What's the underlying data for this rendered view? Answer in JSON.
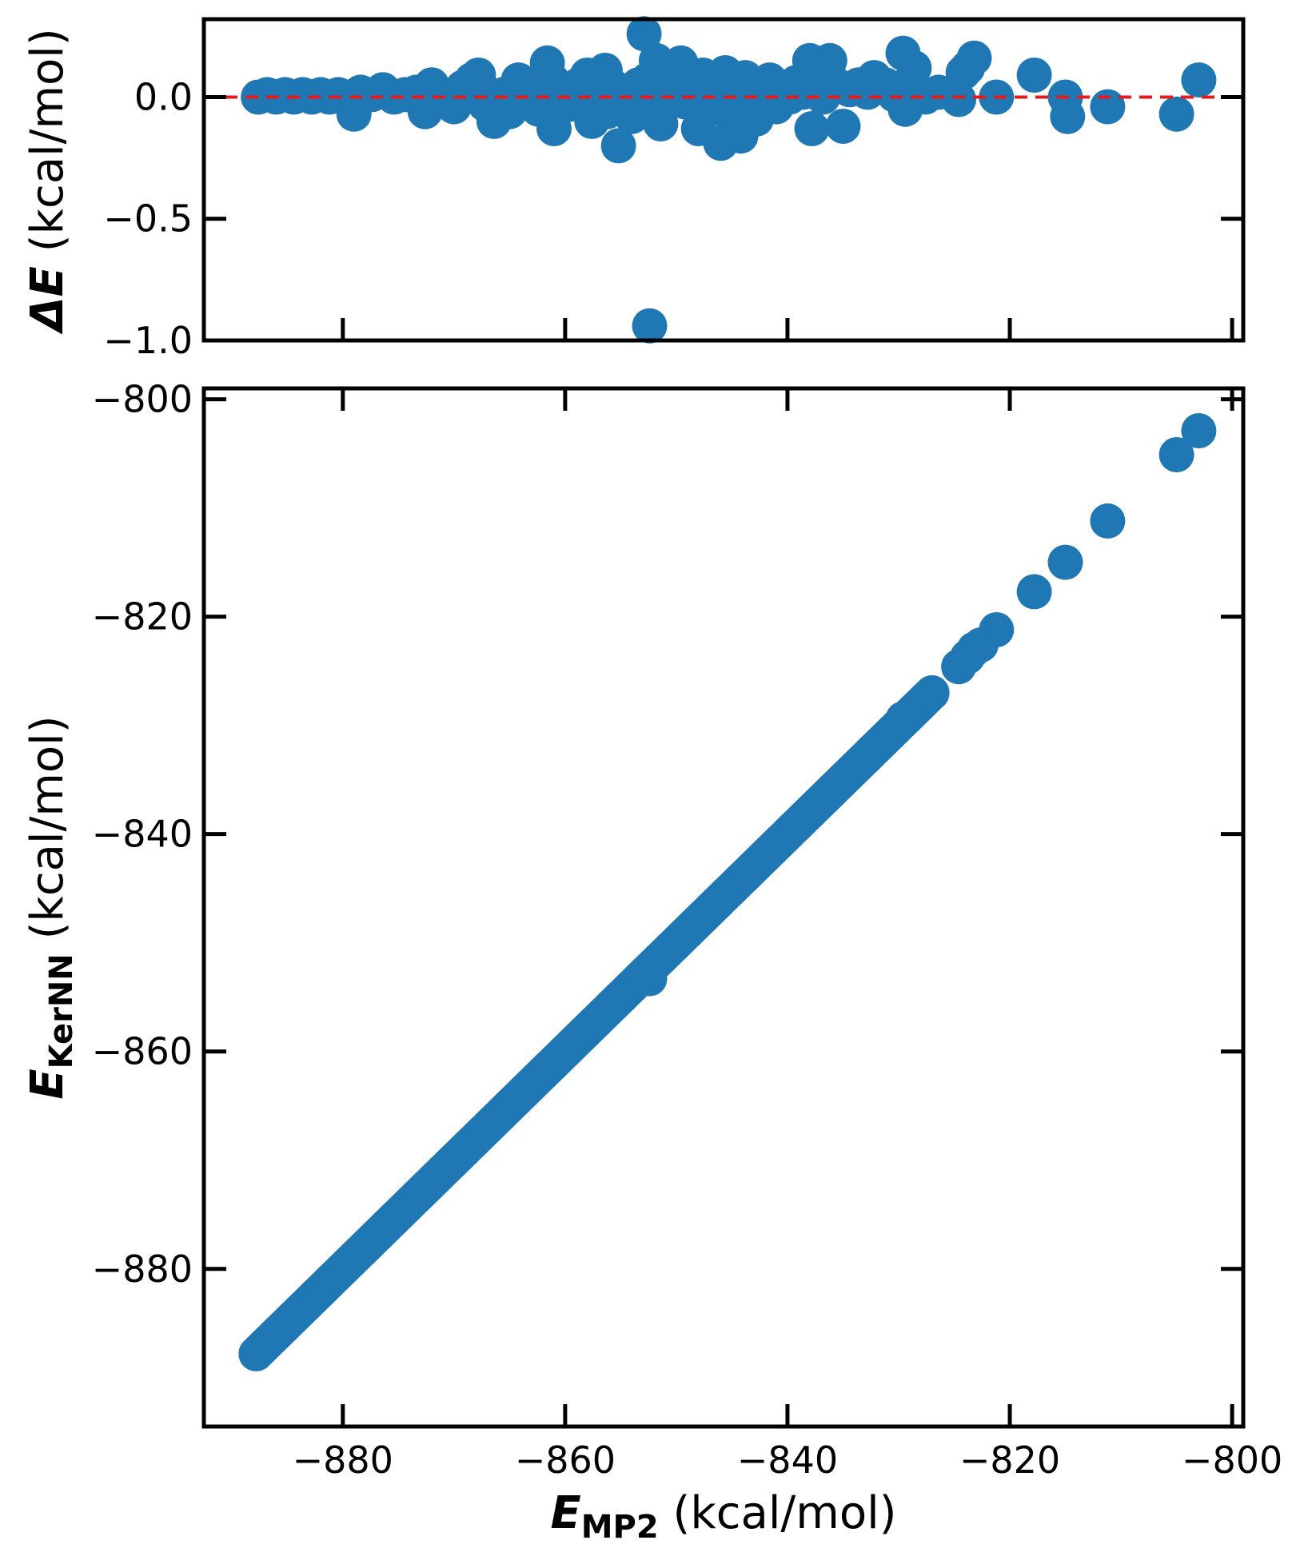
{
  "chart_data": [
    {
      "id": "residual-panel",
      "type": "scatter",
      "xlim": [
        -892.5,
        -799
      ],
      "ylim": [
        -1.0,
        0.32
      ],
      "xticks": [
        -880,
        -860,
        -840,
        -820,
        -800
      ],
      "yticks": [
        0.0,
        -0.5,
        -1.0
      ],
      "ytick_labels": [
        "0.0",
        "−0.5",
        "−1.0"
      ],
      "ylabel_main": "ΔE",
      "ylabel_units": " (kcal/mol)",
      "reference_line": {
        "y": 0.0,
        "color": "#e41a1c",
        "style": "dashed"
      },
      "marker_color": "#1f77b4",
      "points": [
        [
          -887.6,
          0.0
        ],
        [
          -886.8,
          0.01
        ],
        [
          -886.0,
          0.0
        ],
        [
          -885.2,
          0.01
        ],
        [
          -884.4,
          0.0
        ],
        [
          -883.6,
          0.01
        ],
        [
          -882.8,
          0.0
        ],
        [
          -882.0,
          0.01
        ],
        [
          -881.2,
          0.0
        ],
        [
          -880.4,
          0.01
        ],
        [
          -879.6,
          0.0
        ],
        [
          -879.0,
          -0.07
        ],
        [
          -878.4,
          0.02
        ],
        [
          -877.4,
          0.01
        ],
        [
          -876.4,
          0.03
        ],
        [
          -875.4,
          0.0
        ],
        [
          -874.4,
          0.01
        ],
        [
          -873.4,
          0.02
        ],
        [
          -872.6,
          -0.06
        ],
        [
          -872.0,
          0.05
        ],
        [
          -871.0,
          0.01
        ],
        [
          -870.0,
          -0.04
        ],
        [
          -869.2,
          0.04
        ],
        [
          -868.4,
          0.07
        ],
        [
          -867.8,
          0.09
        ],
        [
          -867.2,
          -0.03
        ],
        [
          -866.4,
          -0.1
        ],
        [
          -865.6,
          0.01
        ],
        [
          -865.0,
          -0.06
        ],
        [
          -864.2,
          0.07
        ],
        [
          -863.4,
          0.0
        ],
        [
          -862.4,
          -0.05
        ],
        [
          -861.6,
          0.14
        ],
        [
          -861.2,
          0.07
        ],
        [
          -861.0,
          -0.13
        ],
        [
          -860.2,
          0.02
        ],
        [
          -859.6,
          -0.03
        ],
        [
          -858.8,
          0.05
        ],
        [
          -858.0,
          0.09
        ],
        [
          -857.6,
          -0.1
        ],
        [
          -857.0,
          0.02
        ],
        [
          -856.4,
          0.11
        ],
        [
          -856.2,
          -0.06
        ],
        [
          -855.6,
          0.04
        ],
        [
          -855.2,
          -0.2
        ],
        [
          -854.6,
          0.02
        ],
        [
          -854.0,
          -0.08
        ],
        [
          -853.4,
          0.05
        ],
        [
          -852.9,
          0.26
        ],
        [
          -852.6,
          0.07
        ],
        [
          -852.4,
          -0.94
        ],
        [
          -852.2,
          -0.05
        ],
        [
          -851.8,
          0.15
        ],
        [
          -851.4,
          -0.11
        ],
        [
          -851.0,
          0.02
        ],
        [
          -850.4,
          0.08
        ],
        [
          -849.6,
          0.14
        ],
        [
          -849.2,
          -0.02
        ],
        [
          -848.6,
          0.04
        ],
        [
          -848.0,
          -0.13
        ],
        [
          -847.6,
          0.09
        ],
        [
          -847.0,
          -0.05
        ],
        [
          -846.4,
          0.02
        ],
        [
          -846.0,
          -0.19
        ],
        [
          -845.6,
          0.1
        ],
        [
          -845.2,
          -0.07
        ],
        [
          -844.6,
          0.06
        ],
        [
          -844.2,
          -0.16
        ],
        [
          -843.8,
          0.08
        ],
        [
          -843.4,
          0.01
        ],
        [
          -842.8,
          -0.09
        ],
        [
          -842.2,
          0.03
        ],
        [
          -841.6,
          0.07
        ],
        [
          -841.0,
          -0.04
        ],
        [
          -840.4,
          0.03
        ],
        [
          -839.8,
          0.0
        ],
        [
          -839.2,
          0.06
        ],
        [
          -838.6,
          0.02
        ],
        [
          -838.0,
          0.15
        ],
        [
          -837.8,
          -0.13
        ],
        [
          -837.4,
          0.04
        ],
        [
          -836.8,
          0.0
        ],
        [
          -836.2,
          0.15
        ],
        [
          -835.6,
          0.05
        ],
        [
          -835.0,
          -0.12
        ],
        [
          -834.4,
          0.03
        ],
        [
          -833.6,
          0.05
        ],
        [
          -832.8,
          0.02
        ],
        [
          -832.2,
          0.08
        ],
        [
          -831.2,
          0.05
        ],
        [
          -830.4,
          0.01
        ],
        [
          -829.6,
          0.18
        ],
        [
          -829.4,
          -0.05
        ],
        [
          -829.0,
          0.06
        ],
        [
          -828.6,
          0.12
        ],
        [
          -827.6,
          0.0
        ],
        [
          -826.4,
          0.02
        ],
        [
          -824.6,
          -0.01
        ],
        [
          -824.2,
          0.1
        ],
        [
          -823.8,
          0.12
        ],
        [
          -823.2,
          0.16
        ],
        [
          -821.2,
          0.0
        ],
        [
          -817.8,
          0.09
        ],
        [
          -815.0,
          0.0
        ],
        [
          -814.8,
          -0.08
        ],
        [
          -811.2,
          -0.04
        ],
        [
          -805.0,
          -0.07
        ],
        [
          -803.0,
          0.07
        ]
      ]
    },
    {
      "id": "correlation-panel",
      "type": "scatter",
      "xlim": [
        -892.5,
        -799
      ],
      "ylim": [
        -894.5,
        -799
      ],
      "xticks": [
        -880,
        -860,
        -840,
        -820,
        -800
      ],
      "yticks": [
        -800,
        -820,
        -840,
        -860,
        -880
      ],
      "xtick_labels": [
        "−880",
        "−860",
        "−840",
        "−820",
        "−800"
      ],
      "ytick_labels": [
        "−800",
        "−820",
        "−840",
        "−860",
        "−880"
      ],
      "xlabel_main": "E",
      "xlabel_sub": "MP2",
      "xlabel_units": " (kcal/mol)",
      "ylabel_main": "E",
      "ylabel_sub": "KerNN",
      "ylabel_units": " (kcal/mol)",
      "marker_color": "#1f77b4",
      "line_range": [
        -887.8,
        -827.0
      ],
      "points": [
        [
          -852.4,
          -853.3
        ],
        [
          -829.6,
          -829.4
        ],
        [
          -827.6,
          -827.6
        ],
        [
          -824.6,
          -824.6
        ],
        [
          -823.8,
          -823.7
        ],
        [
          -823.2,
          -823.0
        ],
        [
          -822.6,
          -822.6
        ],
        [
          -821.2,
          -821.2
        ],
        [
          -817.8,
          -817.7
        ],
        [
          -815.0,
          -815.0
        ],
        [
          -811.2,
          -811.2
        ],
        [
          -805.0,
          -805.1
        ],
        [
          -803.0,
          -802.9
        ]
      ]
    }
  ]
}
